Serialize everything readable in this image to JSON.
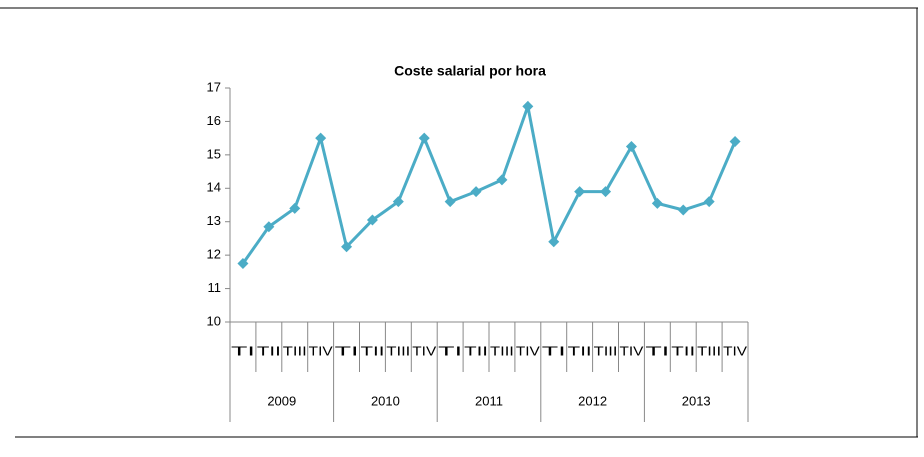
{
  "chart_data": {
    "type": "line",
    "title": "Coste salarial por hora",
    "categories": [
      "TI",
      "TII",
      "TIII",
      "TIV",
      "TI",
      "TII",
      "TIII",
      "TIV",
      "TI",
      "TII",
      "TIII",
      "TIV",
      "TI",
      "TII",
      "TIII",
      "TIV",
      "TI",
      "TII",
      "TIII",
      "TIV"
    ],
    "years": [
      "2009",
      "2010",
      "2011",
      "2012",
      "2013"
    ],
    "series": [
      {
        "name": "Coste salarial por hora",
        "color": "#4bacc6",
        "values": [
          11.75,
          12.85,
          13.4,
          15.5,
          12.25,
          13.05,
          13.6,
          15.5,
          13.6,
          13.9,
          14.25,
          16.45,
          12.4,
          13.9,
          13.9,
          15.25,
          13.55,
          13.35,
          13.6,
          15.4
        ]
      }
    ],
    "ylim": [
      10,
      17
    ],
    "yticks": [
      10,
      11,
      12,
      13,
      14,
      15,
      16,
      17
    ],
    "grid": false
  }
}
